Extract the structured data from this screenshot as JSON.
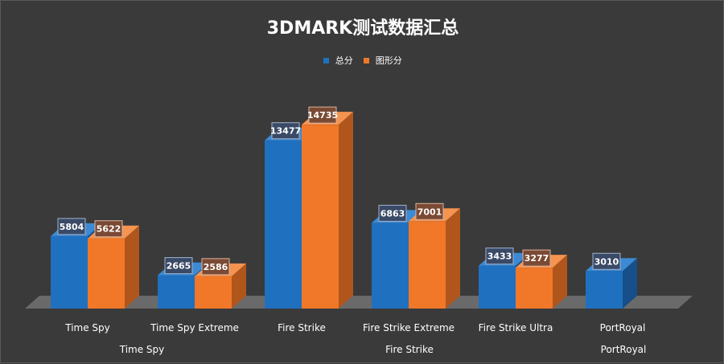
{
  "chart_data": {
    "type": "bar",
    "title": "3DMARK测试数据汇总",
    "xlabel": "",
    "ylabel": "",
    "ylim": [
      0,
      17000
    ],
    "grid": false,
    "legend_position": "top-center",
    "categories": [
      "Time Spy",
      "Time Spy Extreme",
      "Fire Strike",
      "Fire Strike Extreme",
      "Fire Strike Ultra",
      "PortRoyal"
    ],
    "groups": [
      {
        "label": "Time Spy",
        "span": [
          0,
          1
        ]
      },
      {
        "label": "Fire Strike",
        "span": [
          2,
          4
        ]
      },
      {
        "label": "PortRoyal",
        "span": [
          5,
          5
        ]
      }
    ],
    "series": [
      {
        "name": "总分",
        "color": "#2070c0",
        "values": [
          5804,
          2665,
          13477,
          6863,
          3433,
          3010
        ]
      },
      {
        "name": "图形分",
        "color": "#f07828",
        "values": [
          5622,
          2586,
          14735,
          7001,
          3277,
          null
        ]
      }
    ]
  }
}
